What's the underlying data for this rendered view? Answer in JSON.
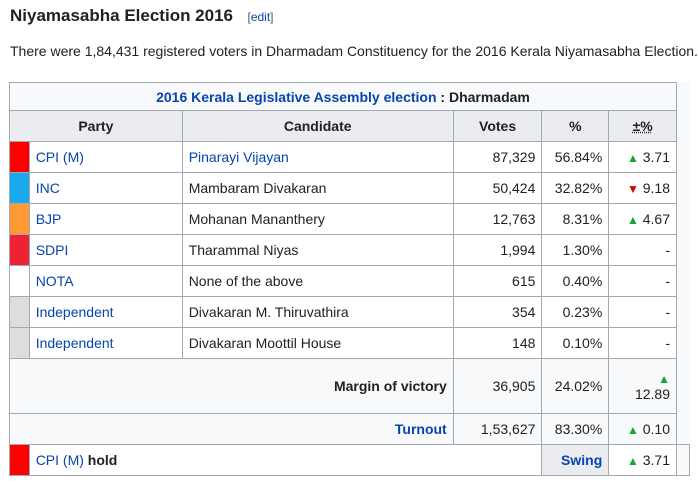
{
  "section": {
    "title": "Niyamasabha Election 2016",
    "edit_open": "[",
    "edit_label": "edit",
    "edit_close": "]"
  },
  "intro": "There were 1,84,431 registered voters in Dharmadam Constituency for the 2016 Kerala Niyamasabha Election.",
  "table": {
    "caption_link": "2016 Kerala Legislative Assembly election",
    "caption_rest": " : Dharmadam",
    "headers": {
      "party": "Party",
      "candidate": "Candidate",
      "votes": "Votes",
      "pct": "%",
      "change": "±%"
    },
    "rows": [
      {
        "color": "#ff0000",
        "party": "CPI (M)",
        "candidate": "Pinarayi Vijayan",
        "candidate_link": true,
        "votes": "87,329",
        "pct": "56.84%",
        "arrow": "▲",
        "dir": "up",
        "change": "3.71"
      },
      {
        "color": "#19aaed",
        "party": "INC",
        "candidate": "Mambaram Divakaran",
        "candidate_link": false,
        "votes": "50,424",
        "pct": "32.82%",
        "arrow": "▼",
        "dir": "down",
        "change": "9.18"
      },
      {
        "color": "#ff9933",
        "party": "BJP",
        "candidate": "Mohanan Mananthery",
        "candidate_link": false,
        "votes": "12,763",
        "pct": "8.31%",
        "arrow": "▲",
        "dir": "up",
        "change": "4.67"
      },
      {
        "color": "#ee2233",
        "party": "SDPI",
        "candidate": "Tharammal Niyas",
        "candidate_link": false,
        "votes": "1,994",
        "pct": "1.30%",
        "arrow": "",
        "dir": "",
        "change": "-"
      },
      {
        "color": "#ffffff",
        "party": "NOTA",
        "candidate": "None of the above",
        "candidate_link": false,
        "votes": "615",
        "pct": "0.40%",
        "arrow": "",
        "dir": "",
        "change": "-"
      },
      {
        "color": "#dddddd",
        "party": "Independent",
        "candidate": "Divakaran M. Thiruvathira",
        "candidate_link": false,
        "votes": "354",
        "pct": "0.23%",
        "arrow": "",
        "dir": "",
        "change": "-"
      },
      {
        "color": "#dddddd",
        "party": "Independent",
        "candidate": "Divakaran Moottil House",
        "candidate_link": false,
        "votes": "148",
        "pct": "0.10%",
        "arrow": "",
        "dir": "",
        "change": "-"
      }
    ],
    "margin": {
      "label": "Margin of victory",
      "votes": "36,905",
      "pct": "24.02%",
      "arrow": "▲",
      "change": "12.89"
    },
    "turnout": {
      "label": "Turnout",
      "votes": "1,53,627",
      "pct": "83.30%",
      "arrow": "▲",
      "change": "0.10"
    },
    "hold": {
      "color": "#ff0000",
      "party": "CPI (M)",
      "suffix": " hold",
      "swing_label": "Swing",
      "arrow": "▲",
      "change": "3.71"
    }
  },
  "colors": {
    "link": "#0645ad",
    "up": "#14a532",
    "down": "#dd0000",
    "border": "#a2a9b1"
  }
}
